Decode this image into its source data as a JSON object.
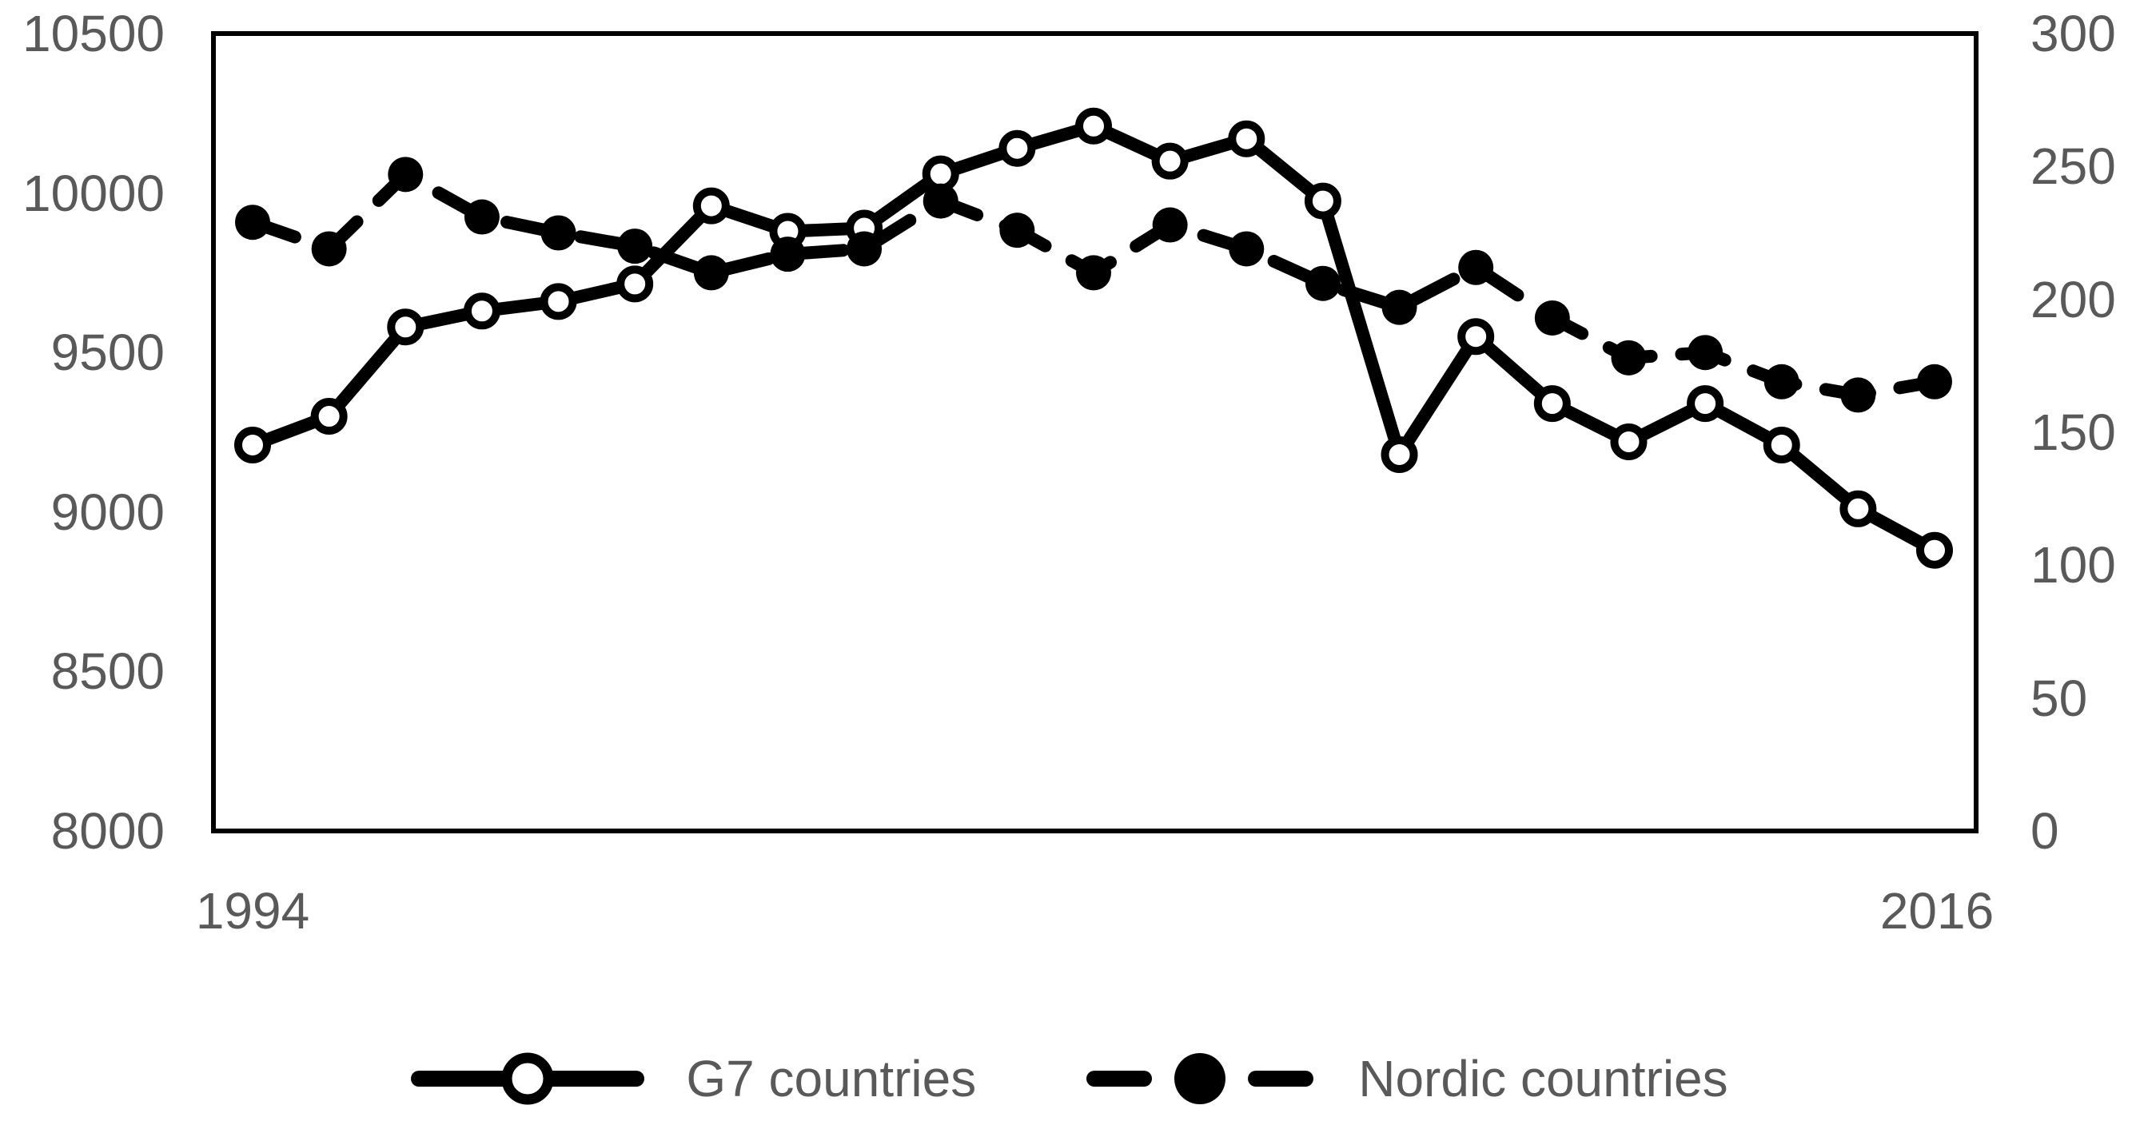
{
  "chart_data": {
    "type": "line",
    "title": "",
    "x": [
      1994,
      1995,
      1996,
      1997,
      1998,
      1999,
      2000,
      2001,
      2002,
      2003,
      2004,
      2005,
      2006,
      2007,
      2008,
      2009,
      2010,
      2011,
      2012,
      2013,
      2014,
      2015,
      2016
    ],
    "x_axis": {
      "labels_shown": [
        "1994",
        "2016"
      ]
    },
    "series": [
      {
        "name": "G7 countries",
        "axis": "left",
        "line_style": "solid",
        "marker": "open-circle",
        "values": [
          9210,
          9300,
          9580,
          9630,
          9660,
          9715,
          9960,
          9880,
          9890,
          10060,
          10140,
          10210,
          10100,
          10170,
          9975,
          9180,
          9550,
          9340,
          9220,
          9340,
          9210,
          9010,
          8880
        ]
      },
      {
        "name": "Nordic countries",
        "axis": "right",
        "line_style": "dashed",
        "marker": "filled-circle",
        "values": [
          229,
          219,
          247,
          231,
          225,
          220,
          210,
          217,
          219,
          237,
          226,
          210,
          228,
          219,
          206,
          197,
          212,
          193,
          178,
          180,
          169,
          164,
          169
        ]
      }
    ],
    "left_axis": {
      "min": 8000,
      "max": 10500,
      "ticks": [
        10500,
        10000,
        9500,
        9000,
        8500,
        8000
      ]
    },
    "right_axis": {
      "min": 0,
      "max": 300,
      "ticks": [
        300,
        250,
        200,
        150,
        100,
        50,
        0
      ]
    },
    "legend_position": "bottom",
    "grid": false
  },
  "colors": {
    "series": "#000000",
    "plot_border": "#000000",
    "axis_labels": "#595959",
    "background": "#ffffff"
  }
}
